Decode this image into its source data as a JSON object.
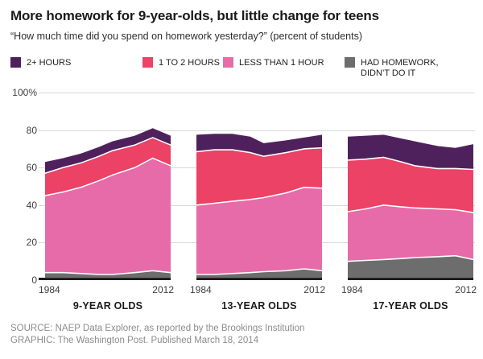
{
  "header": {
    "title": "More homework for 9-year-olds, but little change for teens",
    "subtitle": "“How much time did you spend on homework yesterday?” (percent of students)"
  },
  "legend": {
    "items": [
      {
        "label": "2+ HOURS",
        "color": "#4f215c"
      },
      {
        "label": "1 TO 2 HOURS",
        "color": "#eb4266"
      },
      {
        "label": "LESS THAN 1 HOUR",
        "color": "#e76ba8"
      },
      {
        "label": "HAD HOMEWORK, DIDN’T DO IT",
        "color": "#6d6d6d"
      }
    ]
  },
  "chart_data": {
    "type": "area",
    "stacked": true,
    "grid": true,
    "legend_position": "top",
    "unit": "percent of students",
    "x": [
      1984,
      1988,
      1992,
      1996,
      1999,
      2004,
      2008,
      2012
    ],
    "x_axis_labels": [
      "1984",
      "2012"
    ],
    "y_ticks": [
      "100%",
      "80",
      "60",
      "40",
      "20",
      "0"
    ],
    "ylim": [
      0,
      100
    ],
    "panels": [
      {
        "label": "9-YEAR OLDS",
        "series": [
          {
            "name": "HAD HOMEWORK, DIDN’T DO IT",
            "color": "#6d6d6d",
            "values": [
              4,
              4,
              3.5,
              3,
              3,
              4,
              5,
              4
            ]
          },
          {
            "name": "LESS THAN 1 HOUR",
            "color": "#e76ba8",
            "values": [
              41,
              43,
              46,
              50,
              53,
              56,
              60,
              57
            ]
          },
          {
            "name": "1 TO 2 HOURS",
            "color": "#eb4266",
            "values": [
              12,
              13,
              13,
              13,
              13,
              12,
              11,
              11
            ]
          },
          {
            "name": "2+ HOURS",
            "color": "#4f215c",
            "values": [
              6,
              5,
              5,
              5,
              5,
              5,
              5,
              5
            ]
          }
        ]
      },
      {
        "label": "13-YEAR OLDS",
        "series": [
          {
            "name": "HAD HOMEWORK, DIDN’T DO IT",
            "color": "#6d6d6d",
            "values": [
              3,
              3,
              3.5,
              4,
              4.5,
              5,
              6,
              5
            ]
          },
          {
            "name": "LESS THAN 1 HOUR",
            "color": "#e76ba8",
            "values": [
              37,
              38,
              38.5,
              39,
              39.5,
              41.5,
              43.5,
              44
            ]
          },
          {
            "name": "1 TO 2 HOURS",
            "color": "#eb4266",
            "values": [
              28.5,
              28.5,
              27.5,
              25,
              22,
              21.5,
              20.5,
              21.5
            ]
          },
          {
            "name": "2+ HOURS",
            "color": "#4f215c",
            "values": [
              9,
              8.5,
              8.5,
              8.5,
              7,
              6.5,
              6,
              7
            ]
          }
        ]
      },
      {
        "label": "17-YEAR OLDS",
        "series": [
          {
            "name": "HAD HOMEWORK, DIDN’T DO IT",
            "color": "#6d6d6d",
            "values": [
              10,
              10.5,
              11,
              11.5,
              12,
              12.5,
              13,
              11
            ]
          },
          {
            "name": "LESS THAN 1 HOUR",
            "color": "#e76ba8",
            "values": [
              26.5,
              27.5,
              29,
              27.5,
              26.5,
              25.5,
              24.5,
              25
            ]
          },
          {
            "name": "1 TO 2 HOURS",
            "color": "#eb4266",
            "values": [
              27.5,
              26.5,
              25.5,
              24,
              22.5,
              21.5,
              22,
              23
            ]
          },
          {
            "name": "2+ HOURS",
            "color": "#4f215c",
            "values": [
              12.5,
              12.5,
              12,
              12.5,
              13,
              12,
              11,
              13.5
            ]
          }
        ]
      }
    ]
  },
  "footer": {
    "source": "SOURCE: NAEP Data Explorer, as reported by the Brookings Institution",
    "graphic": "GRAPHIC: The Washington Post. Published March 18, 2014"
  }
}
